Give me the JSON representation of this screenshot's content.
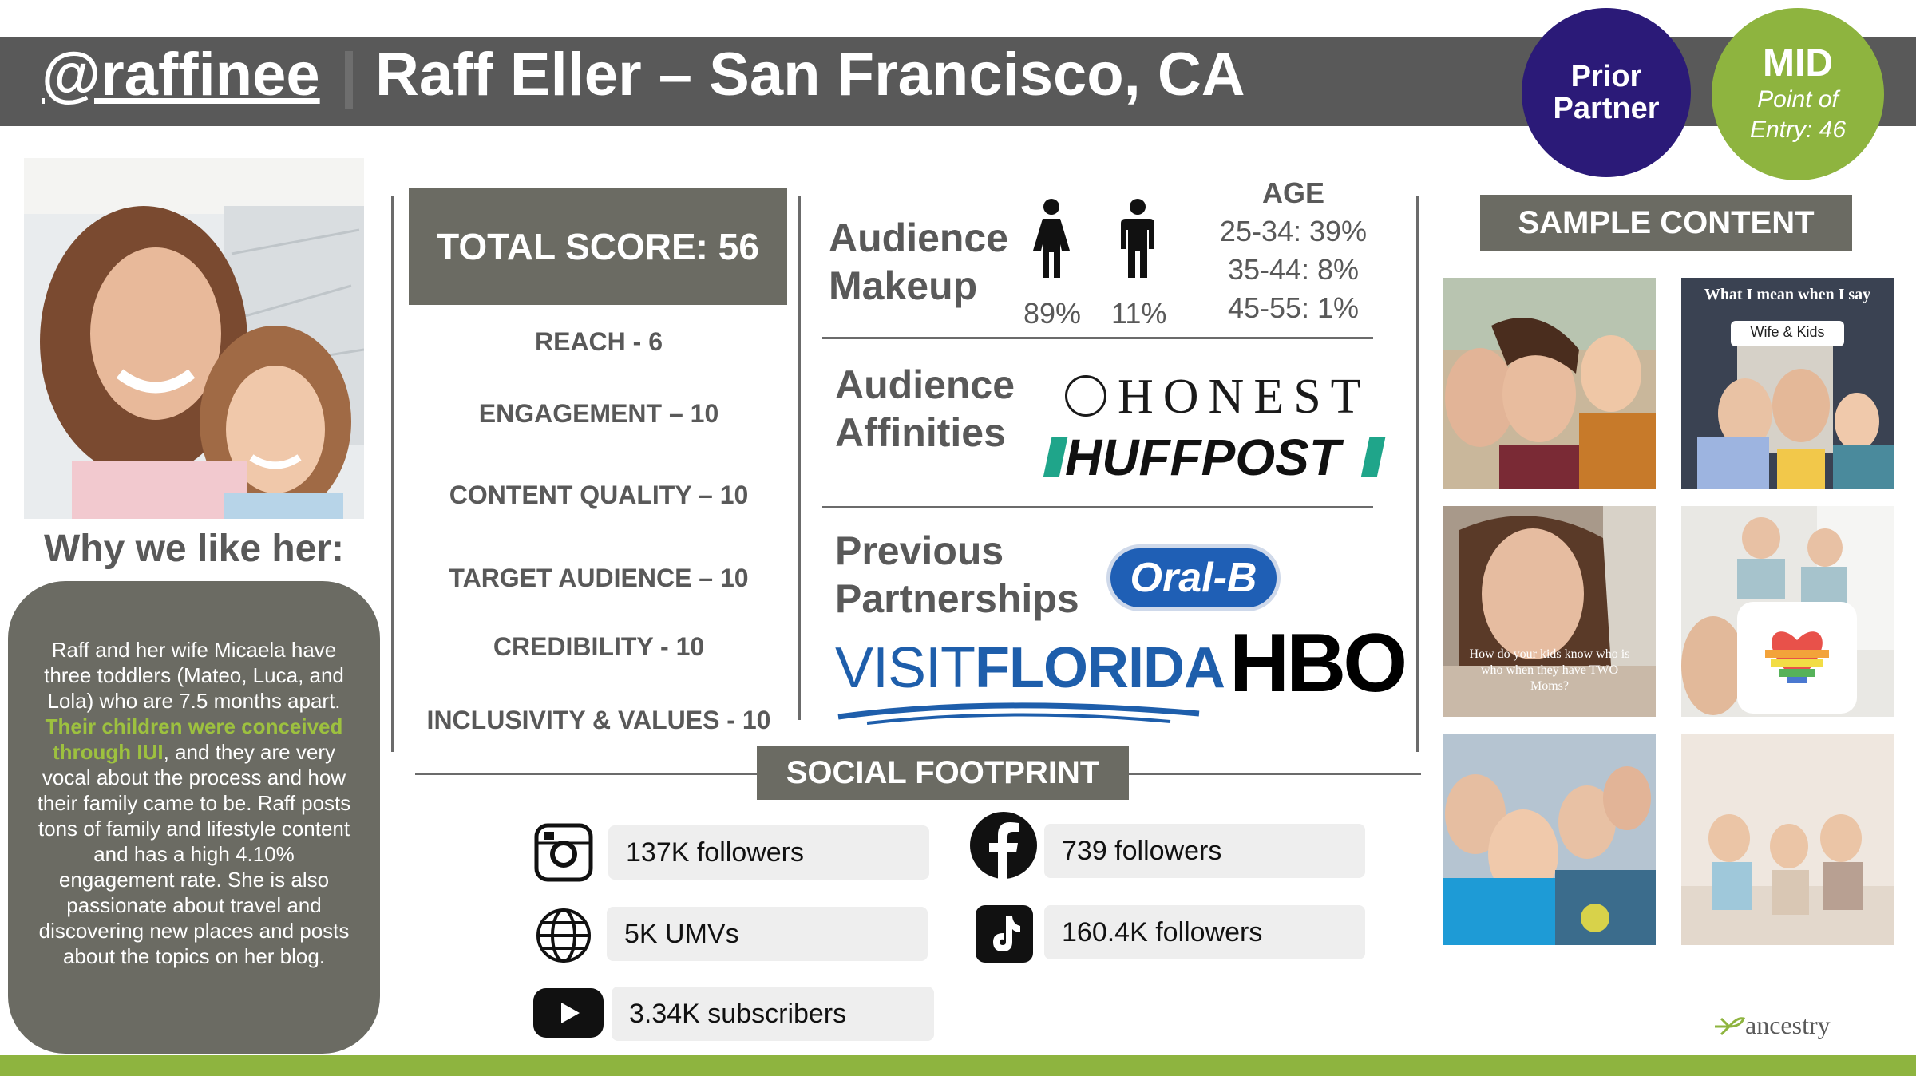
{
  "header": {
    "handle": "@raffinee",
    "title": "Raff Eller – San Francisco, CA"
  },
  "badges": {
    "prior_line1": "Prior",
    "prior_line2": "Partner",
    "tier": "MID",
    "entry_line1": "Point of",
    "entry_line2": "Entry: 46"
  },
  "why": {
    "title": "Why we like her:",
    "text_before": "Raff and her wife Micaela have three toddlers (Mateo, Luca, and Lola) who are 7.5 months apart. ",
    "highlight": "Their children were conceived through IUI",
    "text_after": ", and they are very vocal about the process and how their family came to be. Raff posts tons of family and lifestyle content and has a high 4.10% engagement rate. She is also passionate about travel and discovering new places and posts about the topics on her blog."
  },
  "score": {
    "total": "TOTAL SCORE: 56",
    "items": [
      "REACH - 6",
      "ENGAGEMENT – 10",
      "CONTENT QUALITY – 10",
      "TARGET AUDIENCE – 10",
      "CREDIBILITY - 10",
      "INCLUSIVITY & VALUES - 10"
    ]
  },
  "audience": {
    "label_line1": "Audience",
    "label_line2": "Makeup",
    "female_pct": "89%",
    "male_pct": "11%",
    "age_title": "AGE",
    "age_rows": [
      "25-34: 39%",
      "35-44: 8%",
      "45-55: 1%"
    ]
  },
  "affinities": {
    "label_line1": "Audience",
    "label_line2": "Affinities",
    "logos": [
      "HONEST",
      "HUFFPOST"
    ]
  },
  "partnerships": {
    "label_line1": "Previous",
    "label_line2": "Partnerships",
    "oralb": "Oral-B",
    "visit": "VISIT",
    "florida": "FLORIDA",
    "hbo": "HBO"
  },
  "social": {
    "title": "SOCIAL FOOTPRINT",
    "instagram": "137K followers",
    "facebook": "739 followers",
    "website": "5K UMVs",
    "tiktok": "160.4K followers",
    "youtube": "3.34K subscribers"
  },
  "sample": {
    "title": "SAMPLE CONTENT",
    "caption_top": "What I mean when I say",
    "caption_tag": "Wife & Kids",
    "caption_video": "How do your kids know who is who when they have TWO Moms?"
  },
  "brand": {
    "name": "ancestry",
    "accent_green": "#8eb43f",
    "accent_purple": "#2b1a78",
    "gray": "#595959"
  }
}
